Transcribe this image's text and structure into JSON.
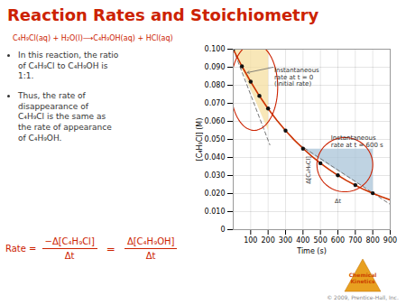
{
  "chart_data": {
    "type": "line",
    "title": "Reaction Rates and Stoichiometry",
    "text_color": "#cc2200",
    "equation": "C₄H₉Cl(aq) + H₂O(l)⟶C₄H₉OH(aq) + HCl(aq)",
    "bullets": [
      "In this reaction, the ratio\nof C₄H₉Cl to C₄H₉OH is\n1:1.",
      "Thus, the rate of\ndisappearance of\nC₄H₉Cl is the same as\nthe rate of appearance\nof C₄H₉OH."
    ],
    "rate_equation": {
      "lhs": "Rate =",
      "separator": "=",
      "terms": [
        {
          "numerator": "−Δ[C₄H₉Cl]",
          "denominator": "Δt"
        },
        {
          "numerator": "Δ[C₄H₉OH]",
          "denominator": "Δt"
        }
      ]
    },
    "logo": {
      "text": "Chemical\nKinetics",
      "color": "#cc4400"
    },
    "credit": "© 2009, Prentice-Hall, Inc.",
    "xlabel": "Time (s)",
    "ylabel": "[C₄H₉Cl] (M)",
    "xlim": [
      0,
      900
    ],
    "ylim": [
      0,
      0.1
    ],
    "xticks": [
      100,
      200,
      300,
      400,
      500,
      600,
      700,
      800,
      900
    ],
    "yticks": [
      {
        "value": 0,
        "label": "0"
      },
      {
        "value": 0.01,
        "label": "0.010"
      },
      {
        "value": 0.02,
        "label": "0.020"
      },
      {
        "value": 0.03,
        "label": "0.030"
      },
      {
        "value": 0.04,
        "label": "0.040"
      },
      {
        "value": 0.05,
        "label": "0.050"
      },
      {
        "value": 0.06,
        "label": "0.060"
      },
      {
        "value": 0.07,
        "label": "0.070"
      },
      {
        "value": 0.08,
        "label": "0.080"
      },
      {
        "value": 0.09,
        "label": "0.090"
      },
      {
        "value": 0.1,
        "label": "0.100"
      }
    ],
    "grid": true,
    "x": [
      0,
      50,
      100,
      150,
      200,
      250,
      300,
      350,
      400,
      450,
      500,
      550,
      600,
      650,
      700,
      750,
      800,
      850,
      900
    ],
    "values": [
      0.1,
      0.0905,
      0.082,
      0.0741,
      0.067,
      0.0606,
      0.0549,
      0.0497,
      0.045,
      0.0407,
      0.0368,
      0.0333,
      0.0301,
      0.0272,
      0.0246,
      0.0222,
      0.0201,
      0.0182,
      0.0165
    ],
    "color": "#cc3300",
    "line_style": "solid",
    "points": {
      "x": [
        0,
        50,
        100,
        150,
        200,
        300,
        400,
        500,
        600,
        700,
        800
      ],
      "values": [
        0.1,
        0.0905,
        0.082,
        0.0741,
        0.0671,
        0.0549,
        0.0449,
        0.0368,
        0.0301,
        0.0247,
        0.0202
      ],
      "color": "#111111",
      "marker": "circle"
    },
    "tangents": [
      {
        "x": [
          0,
          210
        ],
        "values": [
          0.1,
          0.047
        ],
        "color": "#777777",
        "line_style": "dashed"
      },
      {
        "x": [
          380,
          900
        ],
        "values": [
          0.047,
          0.014
        ],
        "color": "#777777",
        "line_style": "dashed"
      }
    ],
    "triangles": [
      {
        "x": [
          0,
          200,
          200
        ],
        "values": [
          0.1,
          0.1,
          0.055
        ],
        "color": "#f5dfa0"
      },
      {
        "x": [
          400,
          800,
          800
        ],
        "values": [
          0.0449,
          0.0449,
          0.0202
        ],
        "color": "#aac4d8"
      }
    ],
    "ellipses": [
      {
        "x": 120,
        "y": 0.079,
        "width": 270,
        "height": 0.048,
        "color": "#cc2200"
      },
      {
        "x": 640,
        "y": 0.036,
        "width": 320,
        "height": 0.03,
        "color": "#cc2200"
      }
    ],
    "annotations": [
      {
        "text": "Instantaneous\nrate at t = 0\n(initial rate)",
        "x": 230,
        "y": 0.09,
        "arrow_x": 80,
        "arrow_y": 0.087
      },
      {
        "text": "Instantaneous\nrate at t = 600 s",
        "x": 560,
        "y": 0.046
      },
      {
        "text": "Δ[C₄H₉Cl]",
        "x": 403,
        "y": 0.033
      },
      {
        "text": "Δt",
        "x": 600,
        "y": 0.0185
      }
    ]
  }
}
